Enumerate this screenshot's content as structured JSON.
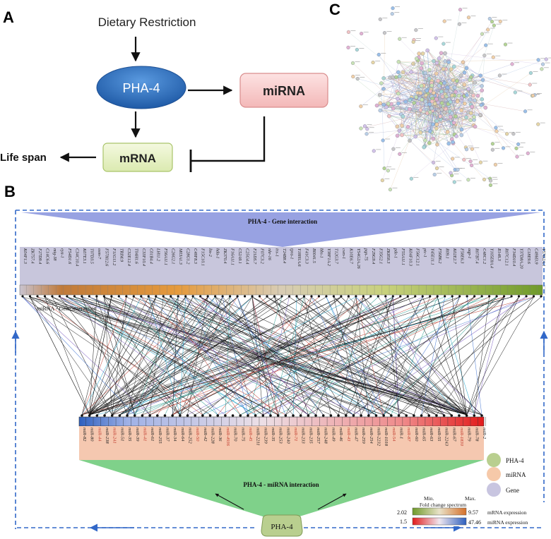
{
  "panels": {
    "a": "A",
    "b": "B",
    "c": "C"
  },
  "panel_a": {
    "dietary": "Dietary Restriction",
    "pha4": "PHA-4",
    "mirna": "miRNA",
    "mrna": "mRNA",
    "lifespan": "Life span"
  },
  "panel_b": {
    "gene_interaction": "PHA-4 - Gene interaction",
    "mirna_gene_interaction": "miRNA - Gene interaction",
    "pha4_mirna_interaction": "PHA-4 - miRNA interaction",
    "pha4_node": "PHA-4",
    "genes": [
      "K04F1.3",
      "ZK757.4",
      "F27D9.4",
      "C14C6.6",
      "mig-38",
      "eya-1",
      "F54D1.6",
      "C34C10.4",
      "K07E3.1",
      "T07D3.5",
      "osm-7",
      "F57H12.6",
      "F11G11.2",
      "TRIM.9",
      "C32E12.4",
      "T04H1.6",
      "C33F10.4",
      "C01B4.4",
      "LH11.2",
      "F56A11.1",
      "C26G2.1",
      "M03A1.3",
      "C28G1.2",
      "C49F8.3",
      "F15C10.1",
      "lin-2",
      "hda-1",
      "ZK370.4",
      "F16A11.1",
      "C52A9.1",
      "C25G4.4",
      "F21D5.7",
      "F07C3.2",
      "nhr-16",
      "irx-1",
      "T24B8.4",
      "tpra-1",
      "Y18H1A.6",
      "F41C3.3",
      "B0041.5",
      "bbs-1",
      "Y38F1A.2",
      "T12G3.7",
      "cwn-1",
      "K10E6.7",
      "Y54G2A.26",
      "pqn-75",
      "F29G9.4",
      "F35G2.1",
      "ZK858.3",
      "pde-1",
      "F55A11.1",
      "K04F10.3",
      "F56C12.1",
      "ptc-1",
      "Y45E11.1",
      "F56B6.2",
      "R09.1",
      "K02E2.7",
      "F58E6.3",
      "aqp-1",
      "R07B7.4",
      "C48C1.2",
      "Y105E8A.4",
      "R148.3",
      "R07C12.1",
      "F34D10.4",
      "Y37D8A.20",
      "C18E9.6",
      "C49H3.9",
      "Y57G2A.1"
    ],
    "mirnas": [
      "miR-82",
      "miR-80",
      "miR-44",
      "miR-238",
      "miR-241",
      "miR-51",
      "miR-35",
      "miR-39",
      "miR-41",
      "miR-61",
      "miR-255",
      "miR-37",
      "miR-34",
      "miR-64",
      "miR-252",
      "miR-50",
      "miR-42",
      "miR-228",
      "miR-36",
      "miR-4936",
      "miR-70",
      "miR-75",
      "miR-45",
      "miR-2211",
      "miR-239",
      "miR-35",
      "miR-253",
      "miR-240",
      "miR-71",
      "miR-233",
      "miR-235",
      "miR-257",
      "miR-248",
      "miR-49",
      "miR-46",
      "miR-43",
      "miR-47",
      "miR-259",
      "miR-254",
      "miR-2232",
      "miR-1018",
      "miR-54",
      "miR-1",
      "miR-87",
      "miR-60",
      "miR-65",
      "miR-63",
      "miR-55",
      "miR-2243",
      "miR-67",
      "miR-1830",
      "miR-79",
      "miR-78",
      "miR-2"
    ],
    "legend": {
      "pha4": "PHA-4",
      "mirna": "miRNA",
      "gene": "Gene"
    },
    "spectrum": {
      "min": "Min.",
      "max": "Max.",
      "title": "Fold change spectrum",
      "mirna_min": "2.02",
      "mirna_max": "9.57",
      "mirna_label": "mRNA expression",
      "gene_min": "1.5",
      "gene_max": "47.46",
      "gene_label": "miRNA expression"
    }
  },
  "colors": {
    "pha4_node": "#2f6fb5",
    "mirna_node": "#f6cccc",
    "mrna_node": "#e6f0c2",
    "gene_band": "#c8c6dc",
    "gene_triangle": "#98a2e2",
    "mirna_band": "#f5c8b0",
    "mirna_triangle": "#7fd18a",
    "legend_pha4": "#b9cf8f",
    "legend_mirna": "#f6c9a9",
    "legend_gene": "#c8c5e0",
    "dashed_border": "#3268c8"
  }
}
